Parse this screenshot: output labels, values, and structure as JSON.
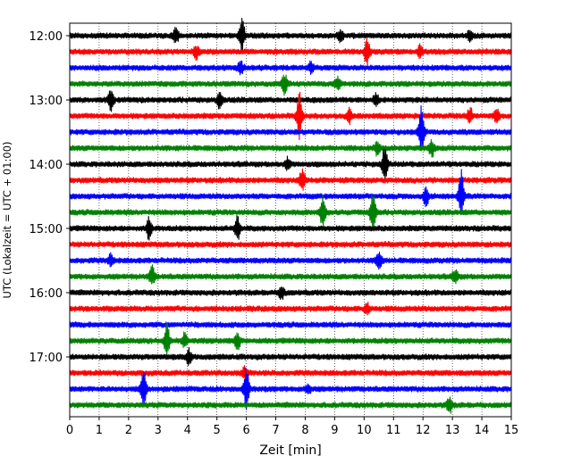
{
  "chart_data": {
    "type": "line",
    "title": "",
    "xlabel": "Zeit  [min]",
    "ylabel": "UTC (Lokalzeit = UTC + 01:00)",
    "xlim": [
      0,
      15
    ],
    "x_ticks": [
      0,
      1,
      2,
      3,
      4,
      5,
      6,
      7,
      8,
      9,
      10,
      11,
      12,
      13,
      14,
      15
    ],
    "x_tick_labels": [
      "0",
      "1",
      "2",
      "3",
      "4",
      "5",
      "6",
      "7",
      "8",
      "9",
      "10",
      "11",
      "12",
      "13",
      "14",
      "15"
    ],
    "y_tick_labels": [
      "12:00",
      "13:00",
      "14:00",
      "15:00",
      "16:00",
      "17:00"
    ],
    "grid": {
      "vertical": true,
      "style": "dotted"
    },
    "trace_colors": [
      "#000000",
      "#ff0000",
      "#0000ff",
      "#008000"
    ],
    "traces": [
      {
        "start": "12:00",
        "color": "#000000",
        "events": [
          {
            "x": 3.6,
            "amp": 0.5
          },
          {
            "x": 5.85,
            "amp": 1.0
          },
          {
            "x": 9.2,
            "amp": 0.35
          },
          {
            "x": 13.6,
            "amp": 0.35
          }
        ]
      },
      {
        "start": "12:15",
        "color": "#ff0000",
        "events": [
          {
            "x": 4.3,
            "amp": 0.4
          },
          {
            "x": 10.1,
            "amp": 0.8
          },
          {
            "x": 11.9,
            "amp": 0.35
          }
        ]
      },
      {
        "start": "12:30",
        "color": "#0000ff",
        "events": [
          {
            "x": 5.8,
            "amp": 0.45
          },
          {
            "x": 8.2,
            "amp": 0.3
          }
        ]
      },
      {
        "start": "12:45",
        "color": "#008000",
        "events": [
          {
            "x": 7.3,
            "amp": 0.6
          },
          {
            "x": 9.1,
            "amp": 0.4
          }
        ]
      },
      {
        "start": "13:00",
        "color": "#000000",
        "events": [
          {
            "x": 1.4,
            "amp": 0.6
          },
          {
            "x": 5.1,
            "amp": 0.55
          },
          {
            "x": 10.4,
            "amp": 0.4
          }
        ]
      },
      {
        "start": "13:15",
        "color": "#ff0000",
        "events": [
          {
            "x": 7.8,
            "amp": 1.5
          },
          {
            "x": 9.5,
            "amp": 0.4
          },
          {
            "x": 13.6,
            "amp": 0.5
          },
          {
            "x": 14.5,
            "amp": 0.4
          }
        ]
      },
      {
        "start": "13:30",
        "color": "#0000ff",
        "events": [
          {
            "x": 11.95,
            "amp": 1.7
          }
        ]
      },
      {
        "start": "13:45",
        "color": "#008000",
        "events": [
          {
            "x": 10.45,
            "amp": 0.45
          },
          {
            "x": 12.3,
            "amp": 0.55
          }
        ]
      },
      {
        "start": "14:00",
        "color": "#000000",
        "events": [
          {
            "x": 7.4,
            "amp": 0.35
          },
          {
            "x": 10.7,
            "amp": 1.1
          }
        ]
      },
      {
        "start": "14:15",
        "color": "#ff0000",
        "events": [
          {
            "x": 7.9,
            "amp": 0.7
          }
        ]
      },
      {
        "start": "14:30",
        "color": "#0000ff",
        "events": [
          {
            "x": 12.1,
            "amp": 0.6
          },
          {
            "x": 13.3,
            "amp": 1.6
          }
        ]
      },
      {
        "start": "14:45",
        "color": "#008000",
        "events": [
          {
            "x": 8.6,
            "amp": 1.0
          },
          {
            "x": 10.3,
            "amp": 1.3
          }
        ]
      },
      {
        "start": "15:00",
        "color": "#000000",
        "events": [
          {
            "x": 2.7,
            "amp": 0.7
          },
          {
            "x": 5.7,
            "amp": 0.75
          }
        ]
      },
      {
        "start": "15:15",
        "color": "#ff0000",
        "events": []
      },
      {
        "start": "15:30",
        "color": "#0000ff",
        "events": [
          {
            "x": 1.4,
            "amp": 0.35
          },
          {
            "x": 10.5,
            "amp": 0.6
          }
        ]
      },
      {
        "start": "15:45",
        "color": "#008000",
        "events": [
          {
            "x": 2.8,
            "amp": 0.6
          },
          {
            "x": 13.1,
            "amp": 0.45
          }
        ]
      },
      {
        "start": "16:00",
        "color": "#000000",
        "events": [
          {
            "x": 7.2,
            "amp": 0.45
          }
        ]
      },
      {
        "start": "16:15",
        "color": "#ff0000",
        "events": [
          {
            "x": 10.1,
            "amp": 0.35
          }
        ]
      },
      {
        "start": "16:30",
        "color": "#0000ff",
        "events": []
      },
      {
        "start": "16:45",
        "color": "#008000",
        "events": [
          {
            "x": 3.3,
            "amp": 1.0
          },
          {
            "x": 3.9,
            "amp": 0.45
          },
          {
            "x": 5.7,
            "amp": 0.55
          }
        ]
      },
      {
        "start": "17:00",
        "color": "#000000",
        "events": [
          {
            "x": 4.05,
            "amp": 0.45
          }
        ]
      },
      {
        "start": "17:15",
        "color": "#ff0000",
        "events": [
          {
            "x": 5.95,
            "amp": 0.4
          }
        ]
      },
      {
        "start": "17:30",
        "color": "#0000ff",
        "events": [
          {
            "x": 2.5,
            "amp": 1.3
          },
          {
            "x": 6.0,
            "amp": 1.3
          },
          {
            "x": 8.1,
            "amp": 0.3
          }
        ]
      },
      {
        "start": "17:45",
        "color": "#008000",
        "events": [
          {
            "x": 12.9,
            "amp": 0.45
          }
        ]
      }
    ]
  }
}
